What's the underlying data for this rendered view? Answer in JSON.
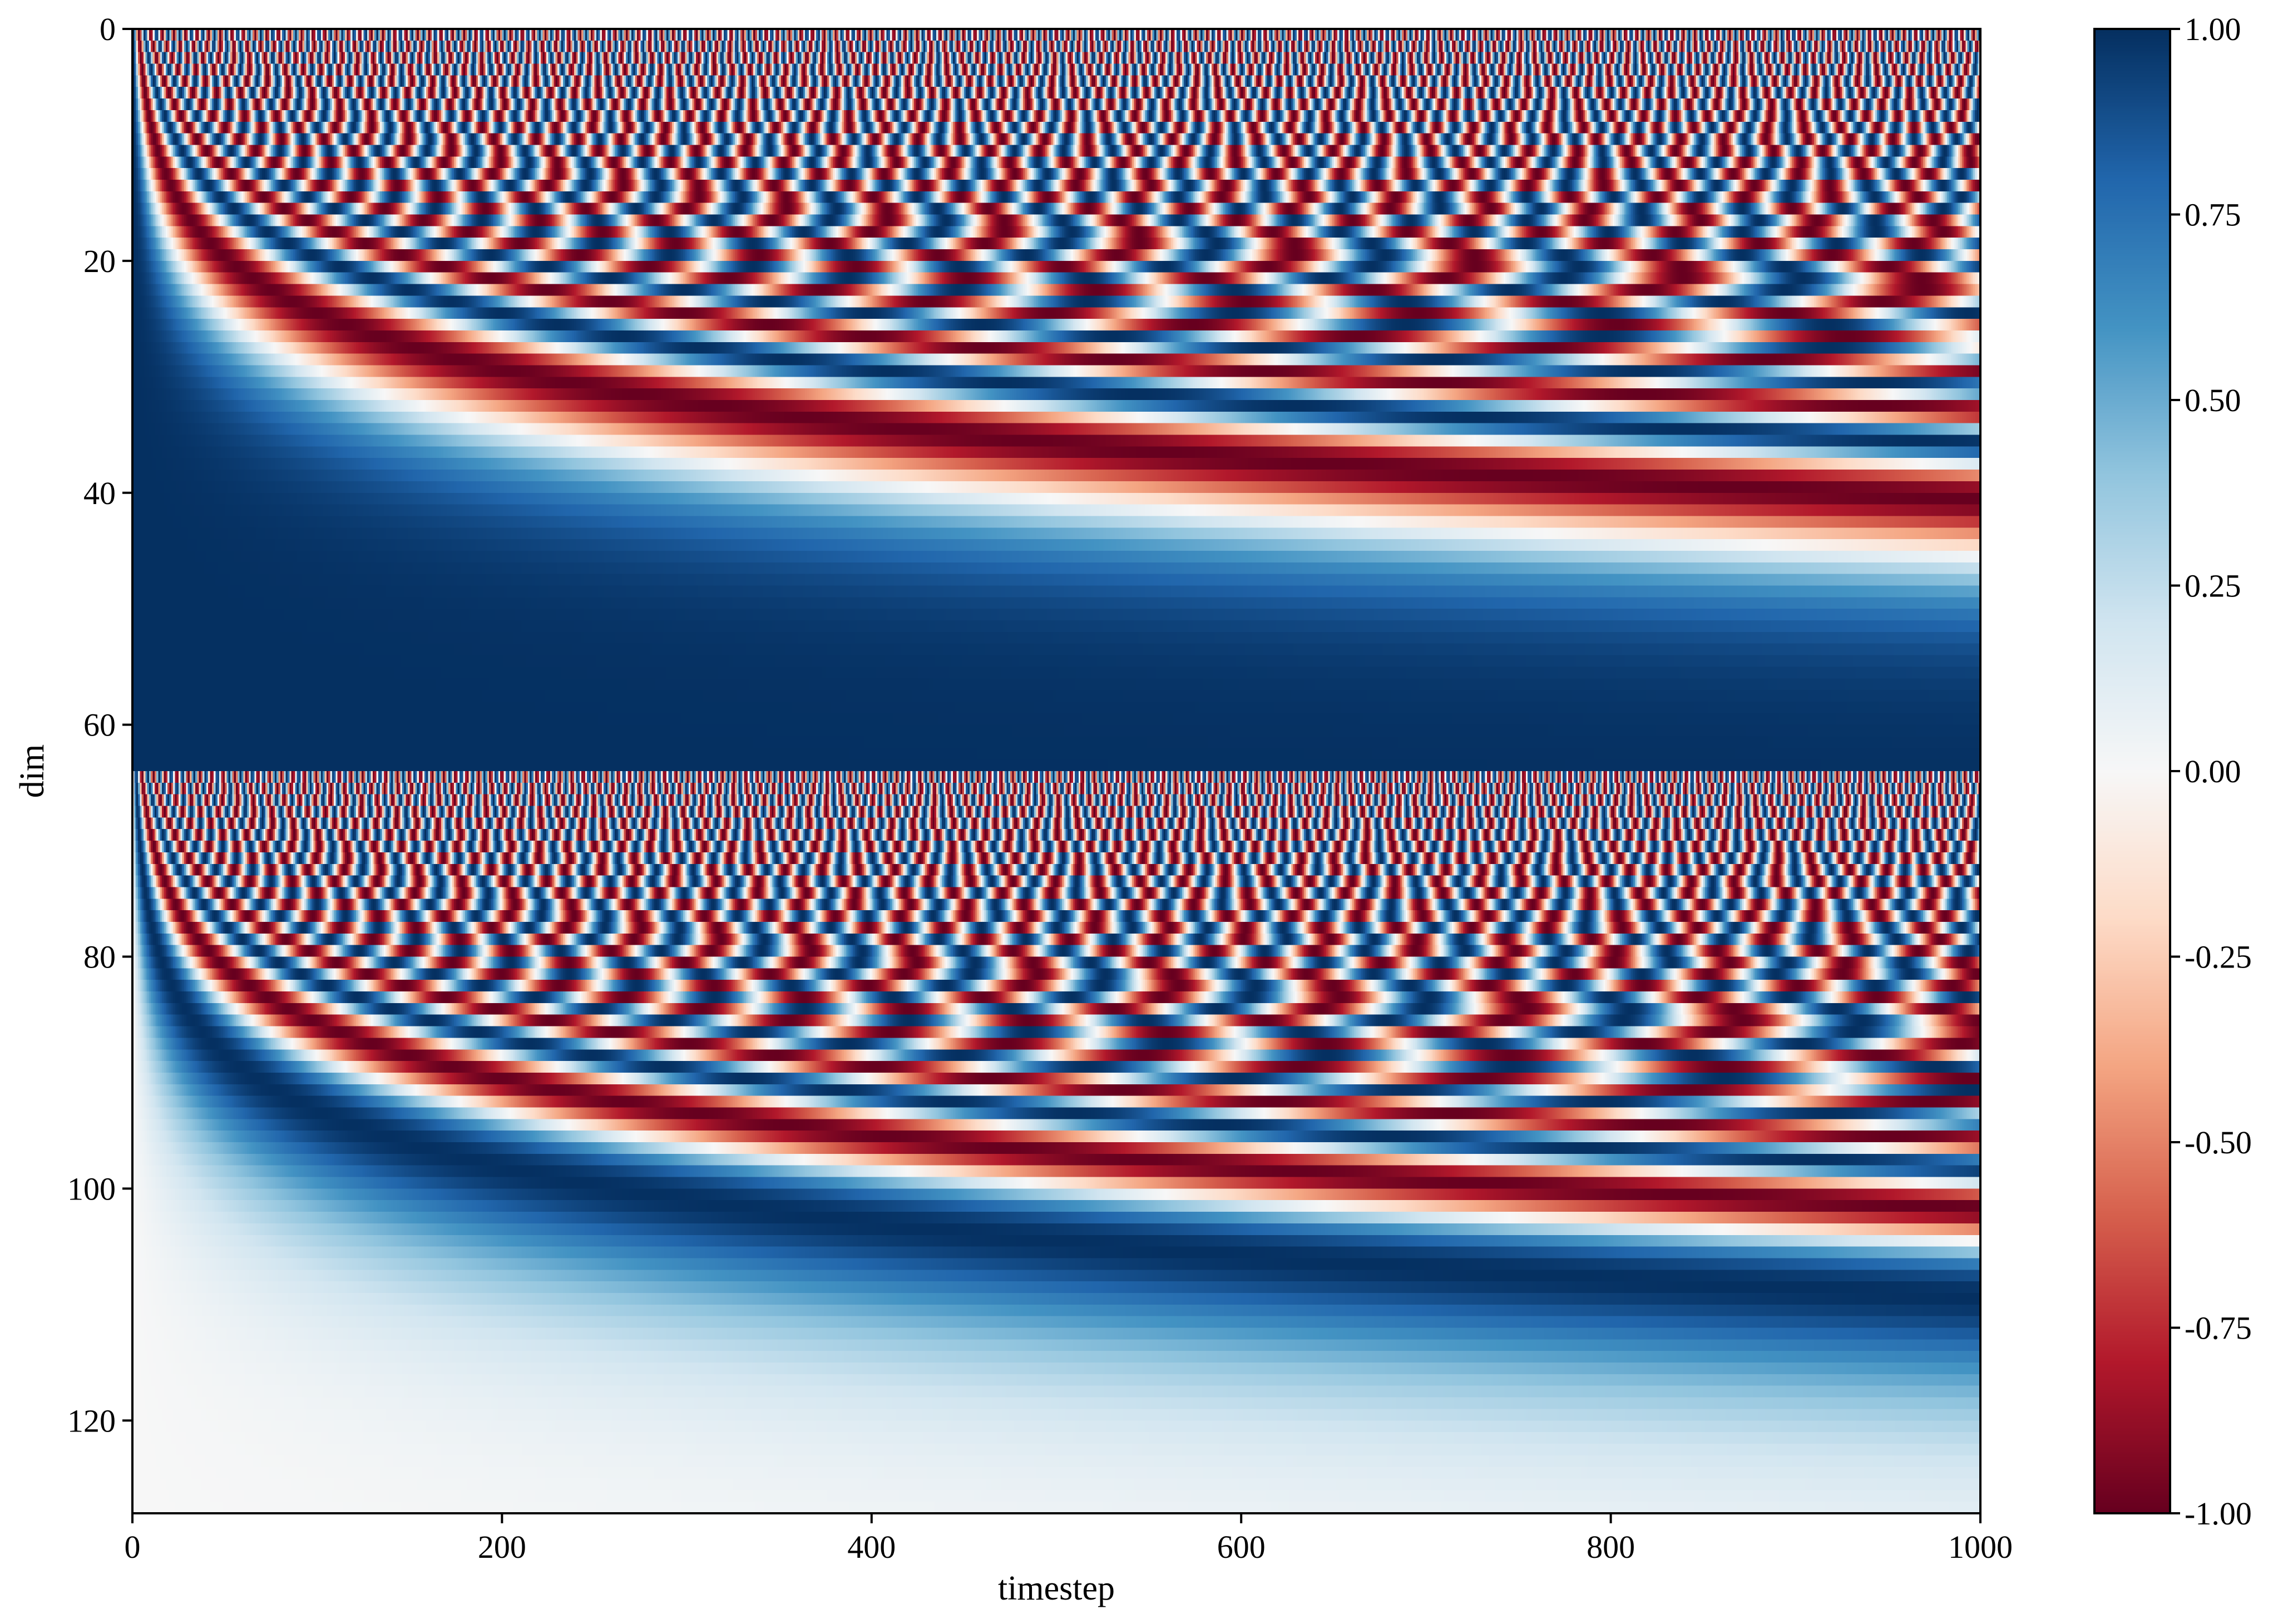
{
  "chart_data": {
    "type": "heatmap",
    "description_of_values": "sinusoidal timestep embedding",
    "title": "",
    "xlabel": "timestep",
    "ylabel": "dim",
    "x_range": [
      0,
      1000
    ],
    "y_range": [
      0,
      128
    ],
    "y_inverted": true,
    "x_ticks": [
      0,
      200,
      400,
      600,
      800,
      1000
    ],
    "y_ticks": [
      0,
      20,
      40,
      60,
      80,
      100,
      120
    ],
    "x_tick_labels": [
      "0",
      "200",
      "400",
      "600",
      "800",
      "1000"
    ],
    "y_tick_labels": [
      "0",
      "20",
      "40",
      "60",
      "80",
      "100",
      "120"
    ],
    "num_dims": 128,
    "num_timesteps": 1000,
    "rows_0_63": "cos(t * w_i)",
    "rows_64_127": "sin(t * w_i)",
    "frequency": "w_i = 10000^(-i/64)",
    "colormap": "RdBu",
    "value_range": [
      -1.0,
      1.0
    ],
    "colorbar": {
      "ticks": [
        1.0,
        0.75,
        0.5,
        0.25,
        0.0,
        -0.25,
        -0.5,
        -0.75,
        -1.0
      ],
      "tick_labels": [
        "1.00",
        "0.75",
        "0.50",
        "0.25",
        "0.00",
        "-0.25",
        "-0.50",
        "-0.75",
        "-1.00"
      ],
      "position": "right"
    },
    "grid": false,
    "legend": "none"
  }
}
